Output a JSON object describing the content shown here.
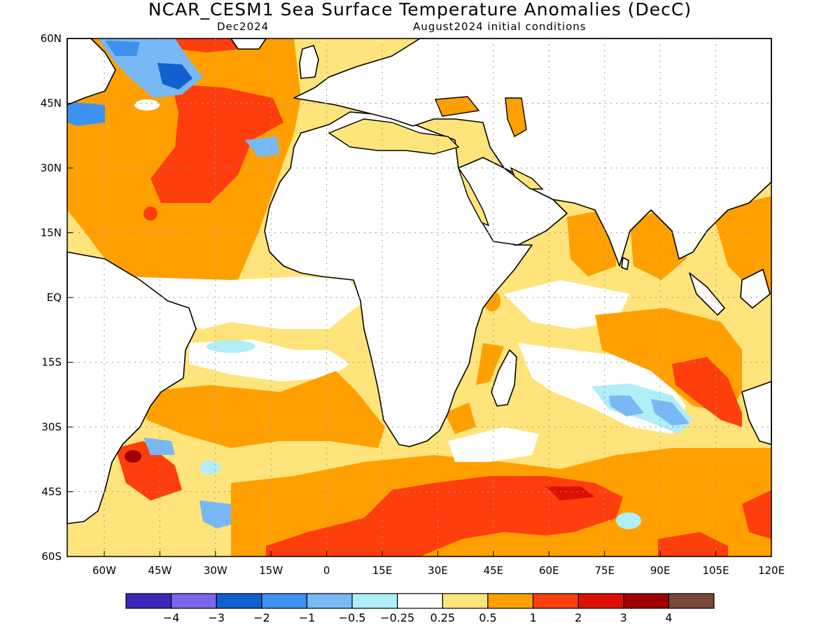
{
  "header": {
    "title": "NCAR_CESM1 Sea Surface Temperature Anomalies (DecC)",
    "valid": "Dec2024",
    "init": "August2024 initial conditions"
  },
  "map": {
    "lon_range": [
      -70,
      120
    ],
    "lat_range": [
      -60,
      60
    ],
    "lon_ticks": [
      "60W",
      "45W",
      "30W",
      "15W",
      "0",
      "15E",
      "30E",
      "45E",
      "60E",
      "75E",
      "90E",
      "105E",
      "120E"
    ],
    "lon_tick_values": [
      -60,
      -45,
      -30,
      -15,
      0,
      15,
      30,
      45,
      60,
      75,
      90,
      105,
      120
    ],
    "lat_ticks": [
      "60N",
      "45N",
      "30N",
      "15N",
      "EQ",
      "15S",
      "30S",
      "45S",
      "60S"
    ],
    "lat_tick_values": [
      60,
      45,
      30,
      15,
      0,
      -15,
      -30,
      -45,
      -60
    ],
    "grid": "dotted",
    "land_color": "#ffffff",
    "coastline_color": "#000000"
  },
  "colorbar": {
    "labels": [
      "−4",
      "−3",
      "−2",
      "−1",
      "−0.5",
      "−0.25",
      "0.25",
      "0.5",
      "1",
      "2",
      "3",
      "4"
    ],
    "colors": [
      "#3a28b8",
      "#7b68e8",
      "#1160d0",
      "#3d92f0",
      "#78b8f5",
      "#b0eef8",
      "#ffffff",
      "#fee47a",
      "#ffa000",
      "#ff3e0d",
      "#dc1005",
      "#a00000",
      "#784838"
    ]
  }
}
